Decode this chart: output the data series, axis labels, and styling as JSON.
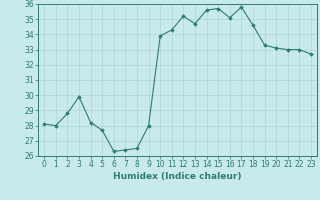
{
  "x": [
    0,
    1,
    2,
    3,
    4,
    5,
    6,
    7,
    8,
    9,
    10,
    11,
    12,
    13,
    14,
    15,
    16,
    17,
    18,
    19,
    20,
    21,
    22,
    23
  ],
  "y": [
    28.1,
    28.0,
    28.8,
    29.9,
    28.2,
    27.7,
    26.3,
    26.4,
    26.5,
    28.0,
    33.9,
    34.3,
    35.2,
    34.7,
    35.6,
    35.7,
    35.1,
    35.8,
    34.6,
    33.3,
    33.1,
    33.0,
    33.0,
    32.7
  ],
  "line_color": "#2e7d6e",
  "marker": "D",
  "markersize": 1.8,
  "linewidth": 0.8,
  "bg_color": "#c8eaea",
  "grid_color": "#b0d4d4",
  "xlabel": "Humidex (Indice chaleur)",
  "xlim": [
    -0.5,
    23.5
  ],
  "ylim": [
    26,
    36
  ],
  "yticks": [
    26,
    27,
    28,
    29,
    30,
    31,
    32,
    33,
    34,
    35,
    36
  ],
  "xticks": [
    0,
    1,
    2,
    3,
    4,
    5,
    6,
    7,
    8,
    9,
    10,
    11,
    12,
    13,
    14,
    15,
    16,
    17,
    18,
    19,
    20,
    21,
    22,
    23
  ],
  "xlabel_fontsize": 6.5,
  "tick_fontsize": 5.5
}
